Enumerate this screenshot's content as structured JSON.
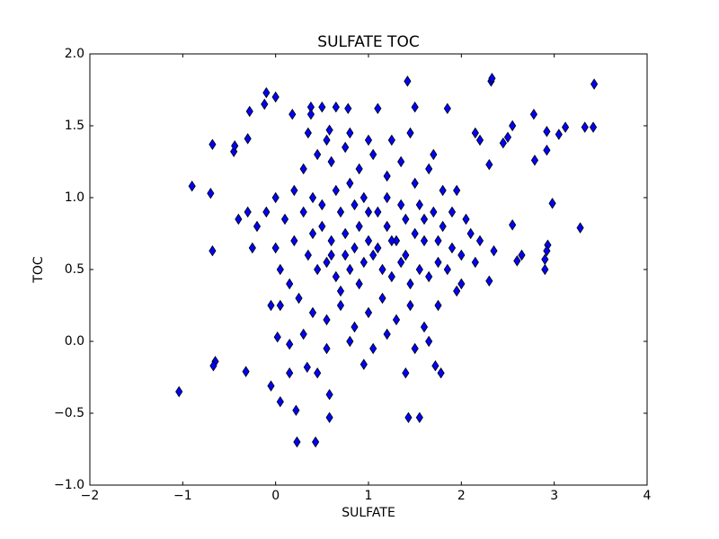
{
  "chart_data": {
    "type": "scatter",
    "title": "SULFATE TOC",
    "x_label": "SULFATE",
    "y_label": "TOC",
    "color": "#0000ff",
    "edge_color": "#000000",
    "marker": "thin_diamond",
    "xlim": [
      -2,
      4
    ],
    "ylim": [
      -1,
      2
    ],
    "xticks": [
      {
        "value": -2,
        "label": "−2"
      },
      {
        "value": -1,
        "label": "−1"
      },
      0,
      1,
      2,
      3,
      4
    ],
    "yticks": [
      {
        "value": -1,
        "label": "−1.0"
      },
      {
        "value": -0.5,
        "label": "−0.5"
      },
      {
        "value": 0,
        "label": "0.0"
      },
      0.5,
      {
        "value": 1,
        "label": "1.0"
      },
      1.5,
      {
        "value": 2,
        "label": "2.0"
      }
    ],
    "x": [
      -1.04,
      -0.9,
      -0.7,
      -0.68,
      -0.68,
      -0.65,
      -0.67,
      -0.32,
      -0.1,
      -0.12,
      0.0,
      -0.28,
      -0.45,
      -0.44,
      -0.3,
      -0.05,
      0.05,
      0.02,
      0.05,
      -0.05,
      0.15,
      0.23,
      0.43,
      0.22,
      0.58,
      0.58,
      1.43,
      1.55,
      0.34,
      0.45,
      0.95,
      1.72,
      1.78,
      1.4,
      1.42,
      1.5,
      2.32,
      2.33,
      3.43,
      3.42,
      3.33,
      3.12,
      3.05,
      2.92,
      2.78,
      2.79,
      2.92,
      2.98,
      3.28,
      2.93,
      2.92,
      2.9,
      2.9,
      2.65,
      2.6,
      2.55,
      2.35,
      2.3,
      2.3,
      2.5,
      2.45,
      2.55,
      2.2,
      2.15,
      1.85,
      1.1,
      0.18,
      0.5,
      0.65,
      0.78,
      0.38,
      0.38,
      0.58,
      0.3,
      0.4,
      0.5,
      0.6,
      0.7,
      0.8,
      0.9,
      1.0,
      1.1,
      1.2,
      1.3,
      1.4,
      1.5,
      1.6,
      1.7,
      1.8,
      1.9,
      2.0,
      0.35,
      0.45,
      0.55,
      0.65,
      0.75,
      0.85,
      0.95,
      1.05,
      1.15,
      1.25,
      1.35,
      1.45,
      1.55,
      1.65,
      1.75,
      1.85,
      1.95,
      0.25,
      0.4,
      0.55,
      0.7,
      0.85,
      1.0,
      1.15,
      1.3,
      1.45,
      1.6,
      1.75,
      0.3,
      0.45,
      0.6,
      0.75,
      0.9,
      1.05,
      1.2,
      1.35,
      1.5,
      1.65,
      1.8,
      1.95,
      0.2,
      0.1,
      0.0,
      -0.1,
      -0.2,
      -0.3,
      -0.4,
      -0.25,
      0.0,
      0.05,
      0.15,
      0.2,
      0.35,
      0.55,
      0.8,
      1.0,
      1.25,
      1.45,
      1.7,
      2.1,
      2.15,
      2.2,
      2.05,
      0.65,
      0.75,
      0.85,
      0.95,
      1.1,
      1.2,
      1.35,
      1.55,
      1.75,
      0.5,
      0.6,
      0.7,
      0.9,
      1.25,
      1.4,
      1.6,
      0.4,
      0.8,
      1.0,
      1.9,
      2.0,
      0.55,
      0.8,
      1.2,
      1.5,
      1.65,
      0.3,
      0.15,
      1.05
    ],
    "values": [
      -0.35,
      1.08,
      1.03,
      1.37,
      0.63,
      -0.14,
      -0.17,
      -0.21,
      1.73,
      1.65,
      1.7,
      1.6,
      1.32,
      1.36,
      1.41,
      0.25,
      0.25,
      0.03,
      -0.42,
      -0.31,
      -0.22,
      -0.7,
      -0.7,
      -0.48,
      -0.53,
      -0.37,
      -0.53,
      -0.53,
      -0.18,
      -0.22,
      -0.16,
      -0.17,
      -0.22,
      -0.22,
      1.81,
      1.63,
      1.81,
      1.83,
      1.79,
      1.49,
      1.49,
      1.49,
      1.44,
      1.46,
      1.58,
      1.26,
      1.33,
      0.96,
      0.79,
      0.67,
      0.63,
      0.57,
      0.5,
      0.6,
      0.56,
      0.81,
      0.63,
      0.42,
      1.23,
      1.42,
      1.38,
      1.5,
      1.4,
      1.45,
      1.62,
      1.62,
      1.58,
      1.63,
      1.63,
      1.62,
      1.63,
      1.58,
      1.47,
      0.9,
      1.0,
      0.8,
      0.7,
      0.9,
      1.1,
      0.8,
      0.7,
      0.9,
      0.8,
      0.7,
      0.85,
      0.75,
      0.7,
      0.9,
      0.8,
      0.65,
      0.6,
      0.6,
      0.5,
      0.55,
      0.45,
      0.6,
      0.65,
      0.55,
      0.6,
      0.5,
      0.45,
      0.55,
      0.4,
      0.5,
      0.45,
      0.55,
      0.5,
      0.35,
      0.3,
      0.2,
      0.15,
      0.25,
      0.1,
      0.2,
      0.3,
      0.15,
      0.25,
      0.1,
      0.25,
      1.2,
      1.3,
      1.25,
      1.35,
      1.2,
      1.3,
      1.15,
      1.25,
      1.1,
      1.2,
      1.05,
      1.05,
      0.7,
      0.85,
      1.0,
      0.9,
      0.8,
      0.9,
      0.85,
      0.65,
      0.65,
      0.5,
      0.4,
      1.05,
      1.45,
      1.4,
      1.45,
      1.4,
      1.4,
      1.45,
      1.3,
      0.75,
      0.55,
      0.7,
      0.85,
      1.05,
      0.75,
      0.95,
      1.0,
      0.65,
      1.0,
      0.95,
      0.95,
      0.7,
      0.95,
      0.6,
      0.35,
      0.4,
      0.7,
      0.6,
      0.85,
      0.75,
      0.5,
      0.9,
      0.9,
      0.4,
      -0.05,
      0.0,
      0.05,
      -0.05,
      0.0,
      0.05,
      -0.02,
      -0.05
    ]
  }
}
